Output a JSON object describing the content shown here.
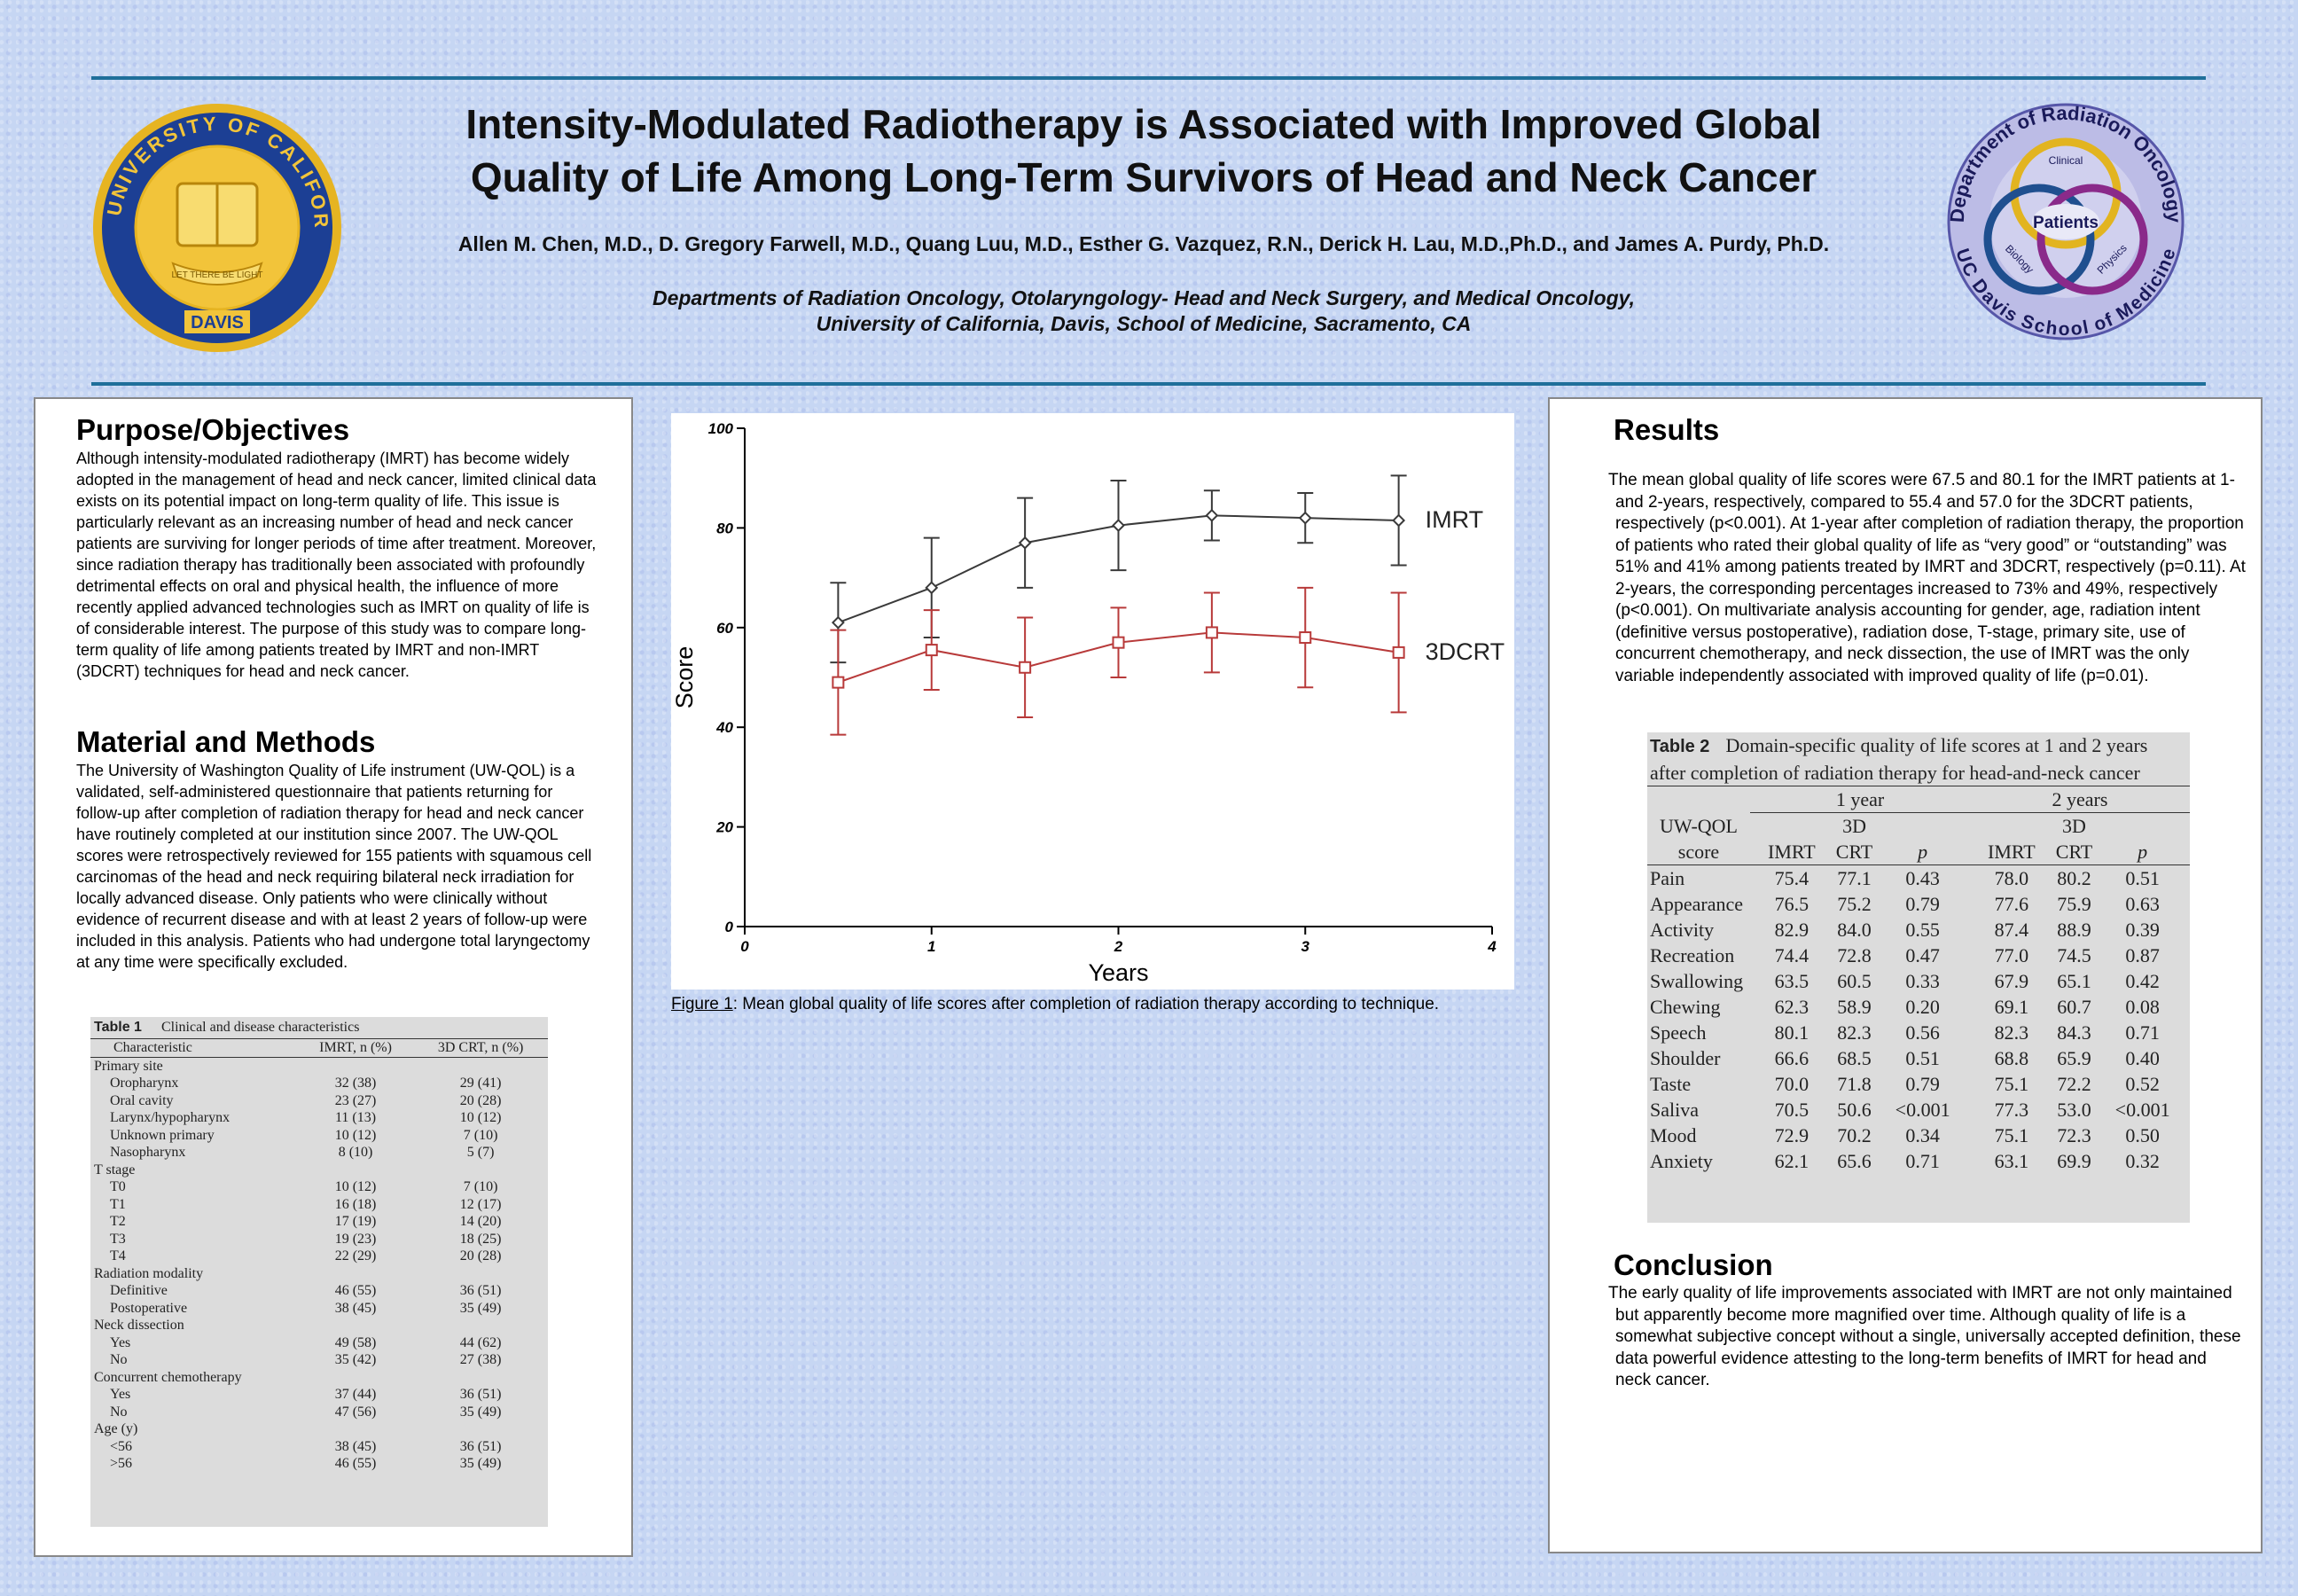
{
  "header": {
    "title": [
      "Intensity-Modulated Radiotherapy is Associated with Improved Global",
      "Quality of Life Among Long-Term Survivors of Head and Neck Cancer"
    ],
    "authors": "Allen M. Chen,  M.D., D. Gregory Farwell, M.D., Quang Luu, M.D., Esther G. Vazquez, R.N., Derick H. Lau, M.D.,Ph.D., and James A. Purdy, Ph.D.",
    "affiliation": [
      "Departments of Radiation Oncology, Otolaryngology- Head and Neck Surgery, and Medical Oncology,",
      "University of California, Davis, School of Medicine, Sacramento, CA"
    ]
  },
  "logos": {
    "seal": {
      "ring": "THE UNIVERSITY OF CALIFORNIA",
      "bottom": "DAVIS",
      "motto": "LET THERE BE LIGHT"
    },
    "department": {
      "top": "Department of Radiation Oncology",
      "bottom": "UC Davis School of Medicine",
      "center": "Patients",
      "rings": [
        "Clinical",
        "Biology",
        "Physics"
      ]
    }
  },
  "purpose": {
    "heading": "Purpose/Objectives",
    "text": "Although intensity-modulated radiotherapy (IMRT) has become widely adopted in the management of head and neck cancer, limited clinical data exists on its potential impact on long-term quality of life.  This issue is particularly relevant as an increasing number of head and neck cancer patients are surviving for longer periods of time after treatment. Moreover, since radiation therapy has traditionally been associated with profoundly detrimental effects on oral and physical health, the influence of more recently applied advanced technologies such as IMRT on quality of life is of considerable interest.  The purpose of this study was to compare long-term quality of life among patients treated by IMRT and non-IMRT (3DCRT) techniques for head and neck cancer."
  },
  "methods": {
    "heading": "Material and Methods",
    "text": "The University of Washington Quality of Life instrument (UW-QOL) is a validated, self-administered questionnaire that patients returning for follow-up after completion of radiation therapy for head and neck cancer have routinely completed at our institution since 2007.  The UW-QOL scores were retrospectively reviewed for 155 patients with squamous cell carcinomas of the head and neck requiring bilateral neck irradiation for locally advanced disease.  Only patients who were clinically without evidence of recurrent disease and with at least 2 years of follow-up were included in this analysis.  Patients who had undergone total laryngectomy at any time were specifically excluded."
  },
  "table1": {
    "label": "Table 1",
    "title": "Clinical and disease characteristics",
    "columns": [
      "Characteristic",
      "IMRT, n (%)",
      "3D CRT, n (%)"
    ],
    "rows": [
      [
        "Primary site"
      ],
      [
        "Oropharynx",
        "32 (38)",
        "29 (41)"
      ],
      [
        "Oral cavity",
        "23 (27)",
        "20 (28)"
      ],
      [
        "Larynx/hypopharynx",
        "11 (13)",
        "10 (12)"
      ],
      [
        "Unknown primary",
        "10 (12)",
        "7 (10)"
      ],
      [
        "Nasopharynx",
        "8 (10)",
        "5 (7)"
      ],
      [
        "T stage"
      ],
      [
        "T0",
        "10 (12)",
        "7 (10)"
      ],
      [
        "T1",
        "16 (18)",
        "12 (17)"
      ],
      [
        "T2",
        "17 (19)",
        "14 (20)"
      ],
      [
        "T3",
        "19 (23)",
        "18 (25)"
      ],
      [
        "T4",
        "22 (29)",
        "20 (28)"
      ],
      [
        "Radiation modality"
      ],
      [
        "Definitive",
        "46 (55)",
        "36 (51)"
      ],
      [
        "Postoperative",
        "38 (45)",
        "35 (49)"
      ],
      [
        "Neck dissection"
      ],
      [
        "Yes",
        "49 (58)",
        "44 (62)"
      ],
      [
        "No",
        "35 (42)",
        "27 (38)"
      ],
      [
        "Concurrent chemotherapy"
      ],
      [
        "Yes",
        "37 (44)",
        "36 (51)"
      ],
      [
        "No",
        "47 (56)",
        "35 (49)"
      ],
      [
        "Age (y)"
      ],
      [
        "<56",
        "38 (45)",
        "36 (51)"
      ],
      [
        ">56",
        "46 (55)",
        "35 (49)"
      ]
    ]
  },
  "chart_data": {
    "type": "line",
    "x_label": "Years",
    "y_label": "Score",
    "x": [
      0.5,
      1,
      1.5,
      2,
      2.5,
      3,
      3.5
    ],
    "series": [
      {
        "name": "IMRT",
        "color": "#3a3a3a",
        "marker": "diamond",
        "values": [
          61,
          68,
          77,
          80.5,
          82.5,
          82,
          81.5
        ],
        "errors": [
          8,
          10,
          9,
          9,
          5,
          5,
          9
        ]
      },
      {
        "name": "3DCRT",
        "color": "#b83a3a",
        "marker": "square",
        "values": [
          49,
          55.5,
          52,
          57,
          59,
          58,
          55
        ],
        "errors": [
          10.5,
          8,
          10,
          7,
          8,
          10,
          12
        ]
      }
    ],
    "xlim": [
      0,
      4
    ],
    "xticks": [
      0,
      1,
      2,
      3,
      4
    ],
    "ylim": [
      0,
      100
    ],
    "yticks": [
      0,
      20,
      40,
      60,
      80,
      100
    ]
  },
  "figure": {
    "label": "Figure 1",
    "caption": ":  Mean global quality of life scores after completion of radiation therapy according to technique."
  },
  "results": {
    "heading": "Results",
    "text": "The mean global quality of life scores were 67.5 and 80.1 for the IMRT patients at 1- and 2-years, respectively, compared to 55.4 and 57.0 for the 3DCRT patients, respectively (p<0.001).  At 1-year after completion of radiation therapy, the proportion of patients who rated their global quality of life as “very good” or “outstanding” was 51% and 41% among patients treated by IMRT and 3DCRT, respectively (p=0.11).  At 2-years, the corresponding percentages increased to 73% and 49%, respectively (p<0.001).  On multivariate analysis accounting for gender, age, radiation intent (definitive versus postoperative), radiation dose, T-stage, primary site, use of concurrent chemotherapy, and neck dissection, the use of IMRT was the only variable independently associated with improved quality of life (p=0.01)."
  },
  "table2": {
    "label": "Table 2",
    "title": "Domain-specific quality of life scores at 1 and 2 years after completion of radiation therapy for head-and-neck cancer",
    "groups": [
      "1 year",
      "2 years"
    ],
    "columns": [
      "UW-QOL score",
      "IMRT",
      "3D CRT",
      "p",
      "IMRT",
      "3D CRT",
      "p"
    ],
    "rows": [
      [
        "Pain",
        "75.4",
        "77.1",
        "0.43",
        "78.0",
        "80.2",
        "0.51"
      ],
      [
        "Appearance",
        "76.5",
        "75.2",
        "0.79",
        "77.6",
        "75.9",
        "0.63"
      ],
      [
        "Activity",
        "82.9",
        "84.0",
        "0.55",
        "87.4",
        "88.9",
        "0.39"
      ],
      [
        "Recreation",
        "74.4",
        "72.8",
        "0.47",
        "77.0",
        "74.5",
        "0.87"
      ],
      [
        "Swallowing",
        "63.5",
        "60.5",
        "0.33",
        "67.9",
        "65.1",
        "0.42"
      ],
      [
        "Chewing",
        "62.3",
        "58.9",
        "0.20",
        "69.1",
        "60.7",
        "0.08"
      ],
      [
        "Speech",
        "80.1",
        "82.3",
        "0.56",
        "82.3",
        "84.3",
        "0.71"
      ],
      [
        "Shoulder",
        "66.6",
        "68.5",
        "0.51",
        "68.8",
        "65.9",
        "0.40"
      ],
      [
        "Taste",
        "70.0",
        "71.8",
        "0.79",
        "75.1",
        "72.2",
        "0.52"
      ],
      [
        "Saliva",
        "70.5",
        "50.6",
        "<0.001",
        "77.3",
        "53.0",
        "<0.001"
      ],
      [
        "Mood",
        "72.9",
        "70.2",
        "0.34",
        "75.1",
        "72.3",
        "0.50"
      ],
      [
        "Anxiety",
        "62.1",
        "65.6",
        "0.71",
        "63.1",
        "69.9",
        "0.32"
      ]
    ]
  },
  "conclusion": {
    "heading": "Conclusion",
    "text": "The early quality of life improvements associated with IMRT are not only maintained but apparently become more magnified over time.  Although quality of life is a somewhat subjective concept without a single, universally accepted definition, these data powerful evidence attesting to the long-term benefits of IMRT for head and neck cancer."
  }
}
